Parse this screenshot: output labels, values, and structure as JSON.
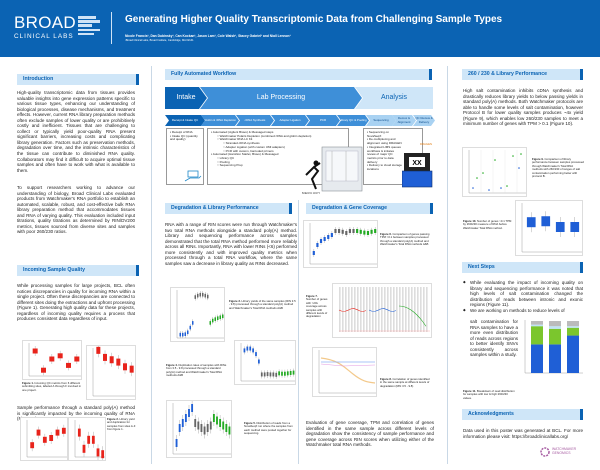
{
  "header": {
    "logo_main": "BROAD",
    "logo_sub": "CLINICAL LABS",
    "title": "Generating Higher Quality Transcriptomic Data from Challenging Sample Types",
    "authors": "Nicole Francis¹, Dan Dubinsky¹, Can Kockan¹, Jason Lam¹, Cole Walsh¹, Stacey Gabriel¹ and Niall Lennon¹",
    "affiliation": "¹Broad Clinical Labs, Broad Institute, Cambridge, MA 02141",
    "brand_color": "#0b63b3"
  },
  "intro": {
    "title": "Introduction",
    "p1": "High-quality transcriptomic data from tissues provides valuable insights into gene expression patterns specific to various tissue types, enhancing our understanding of biological processes, disease mechanisms, and treatment effects. However, current RNA library preparation methods often exclude samples of lower quality or are prohibitively costly and inefficient. Tissues that are challenging to collect or typically yield poor-quality RNA present significant barriers, increasing costs and complicating library generation. Factors such as preservation methods, degradation over time, and the intrinsic characteristics of the tissue can contribute to diminished RNA quality. Collaborators may find it difficult to acquire optimal tissue samples and often have to work with what is available to them.",
    "p2": "To support researchers working to advance our understanding of biology, Broad Clinical Labs evaluated products from Watchmaker's RNA portfolio to establish an automated, scalable, robust, and cost-effective bulk RNA library preparation method that accommodates tissues and RNA of varying quality. This evaluation included input titrations, quality titrations as determined by RIN/DV200 metrics, tissues sourced from diverse sites and samples with poor 260/230 ratios."
  },
  "incoming": {
    "title": "Incoming Sample Quality",
    "p1": "While processing samples for large projects, BCL often notices discrepancies in quality for incoming RNA within a single project. Often these discrepancies are connected to different sites doing the extractions and upfront processing (Figure 1). Generating high quality data for these projects, regardless of incoming quality requires a process that produces consistent data regardless of input.",
    "fig1_label": "Figure 1.",
    "fig1": "Incoming QC metrics from 6 different submitting sites, labeled A through F involved in one project.",
    "p2": "Sample performance through a standard poly(A) method is significantly impacted by the incoming quality of RNA (Figure 2).",
    "fig2_label": "Figure 2.",
    "fig2": "Library yield and duplication for samples from sites A-F from figure 1."
  },
  "workflow": {
    "title": "Fully Automated Workflow",
    "phases": [
      "Intake",
      "Lab Processing",
      "Analysis"
    ],
    "steps": [
      "Receipt & Intake QC",
      "Globin & rRNA Depletion",
      "cDNA Synthesis",
      "Adapter Ligation",
      "PCR",
      "Library QC & Pooling",
      "Sequencing",
      "Demux & Alignment",
      "QC Review & Delivery"
    ],
    "intake_items": [
      "Receipt of RNA",
      "Intake QC (quantity and quality)"
    ],
    "lab_items": [
      {
        "t": "Automated (Agilent Bravo) & Messaged steps",
        "l": 1
      },
      {
        "t": "Watchmaker Polaris Depletion (combined rRNA and globin depletion)",
        "l": 2
      },
      {
        "t": "Watchmaker RNA LC Kit",
        "l": 2
      },
      {
        "t": "Stranded cDNA synthesis",
        "l": 3
      },
      {
        "t": "Adapter Ligation (with custom UMI adapters)",
        "l": 3
      },
      {
        "t": "PCR with custom, barcoded primers",
        "l": 3
      },
      {
        "t": "Automated (Hamilton Starlet, Bravo) & Messaged",
        "l": 1
      },
      {
        "t": "Library QC",
        "l": 2
      },
      {
        "t": "Pooling",
        "l": 2
      },
      {
        "t": "Sequencing Prep",
        "l": 2
      }
    ],
    "analysis_items": [
      "Sequencing on NovaSeqX",
      "De-multiplexing and alignment using DRAGEN",
      "Integrated LIMS queues workflows & initiates review of major QC metrics prior to data delivery",
      "Delivery to cloud storage locations"
    ],
    "mercury_label": "MERCURY",
    "dragen_label": "DRAGEN",
    "instrument_label": "XX"
  },
  "degradation": {
    "title": "Degradation & Library Performance",
    "p1": "RNA with a range of RIN scores were run through Watchmaker's two total RNA methods alongside a standard poly(A) method. Library and sequencing performance across samples demonstrated that the total RNA method performed more reliably across all RINs. Importantly, RNA with lower RINs (<6) performed more consistently and with improved quality metrics when processed through a total RNA workflow, where the same samples saw a decrease in library quality as RINs decreased.",
    "fig3_label": "Figure 3.",
    "fig3": "Library yields of the same samples (RIN 3.5 - 9.8) processed through a standard poly(A) method and Watchmaker's Total RNA methods A&B",
    "fig4_label": "Figure 4.",
    "fig4": "Duplication rates of samples with RINs from 3.5 - 9.8 processed through a standard poly(A) method and Watchmaker's Total RNA methods A&B",
    "fig5_label": "Figure 5.",
    "fig5": "Distribution of reads from a NovaSeqX run where the samples from each method were pooled together for sequencing."
  },
  "coverage": {
    "title": "Degradation & Gene Coverage",
    "fig6_label": "Figure 6.",
    "fig6": "Comparison of genes passing TPM >0.1 between samples processed through a standard poly(A) method and Watchmaker's Total RNA methods A&B",
    "fig7_label": "Figure 7.",
    "fig7": "Number of genes with >20x coverage across samples with different levels of degradation",
    "fig8_label": "Figure 8.",
    "fig8": "Correlation of genes identified in the same sample at different levels of degradation (RIN 3.5 - 9.8)",
    "p1": "Evaluation of gene coverage, TPM and correlation of genes identified in the same sample across different levels of degradation show the consistency of sample performance and gene coverage across RIN scores when utilizing either of the Watchmaker total RNA methods."
  },
  "ratio": {
    "title": "260 / 230 & Library Performance",
    "p1": "High salt contamination inhibits cDNA synthesis and drastically reduces library yields to below passing yields in standard poly(A) methods. Both Watchmaker protocols are able to handle some levels of salt contamination, however Protocol B for lower quality samples produces ~4x yield (Figure 9), which enables low 260/230 samples to meet a minimum number of genes with TPM > 0.1 (Figure 10).",
    "fig9_label": "Figure 9.",
    "fig9": "Comparison of library performance between samples processed through Watchmaker's Total RNA methods with 260/230 of ranges of salt contamination performing better with protocol B.",
    "fig10_label": "Figure 10.",
    "fig10": "Number of genes >0.1 TPM by 260/230 measure of RNA before Watchmaker Total RNA method."
  },
  "next": {
    "title": "Next Steps",
    "b1": "While evaluating the impact of incoming quality on library and sequencing performance it was noted that high levels of salt contamination changed the distribution of reads between intronic and exonic regions (Figure 11).",
    "b2a": "We are working on methods to reduce levels of",
    "b2b": "salt contamination for RNA samples to have a more even distribution of reads across regions to better identify SNVs consistently across samples within a study.",
    "fig11_label": "Figure 11.",
    "fig11": "Breakdown of read distribution for samples with low & high 260/230 values."
  },
  "ack": {
    "title": "Acknowledgments",
    "p1": "Data used in this poster was generated at BCL. For more information please visit: https://broadclinicallabs.org/",
    "logo": "WATCHMAKER GENOMICS"
  },
  "colors": {
    "polyA": "#e8231b",
    "methodA": "#1f5fd6",
    "methodB": "#22aa22",
    "grey": "#666666",
    "section_bg": "#cfe6f8"
  }
}
